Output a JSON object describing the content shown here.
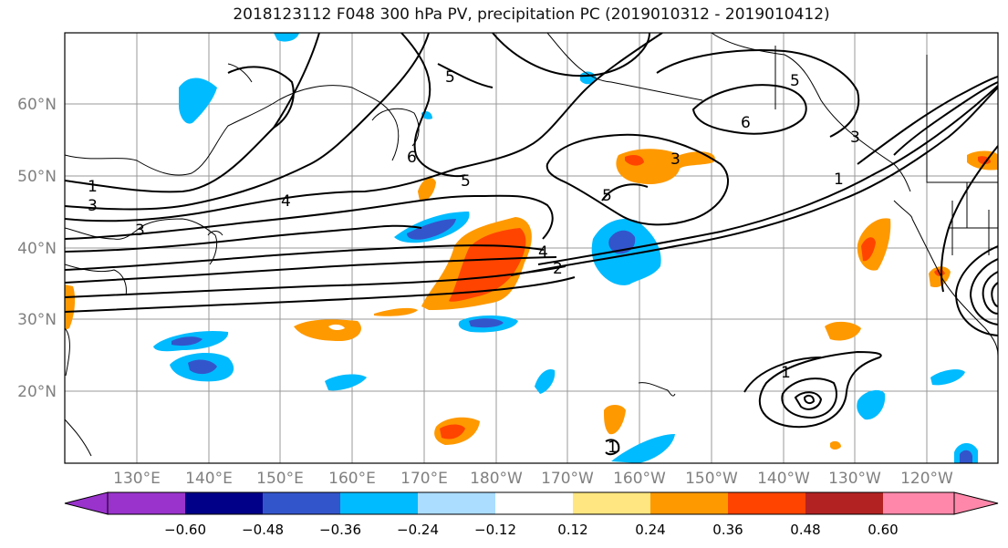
{
  "title": "2018123112 F048 300 hPa PV, precipitation PC (2019010312 - 2019010412)",
  "lat_labels": [
    "60°N",
    "50°N",
    "40°N",
    "30°N",
    "20°N"
  ],
  "lon_labels": [
    "130°E",
    "140°E",
    "150°E",
    "160°E",
    "170°E",
    "180°W",
    "170°W",
    "160°W",
    "150°W",
    "140°W",
    "130°W",
    "120°W"
  ],
  "contour_labels": [
    "1",
    "3",
    "4",
    "5",
    "6",
    "5",
    "6",
    "5",
    "5",
    "3",
    "3",
    "4",
    "2",
    "1",
    "1",
    "1",
    "3"
  ],
  "colorbar": {
    "ticks": [
      "−0.60",
      "−0.48",
      "−0.36",
      "−0.24",
      "−0.12",
      "0.12",
      "0.24",
      "0.36",
      "0.48",
      "0.60"
    ],
    "colors": [
      "#9933cc",
      "#000088",
      "#3355cc",
      "#00bbff",
      "#aaddff",
      "#ffffff",
      "#ffe680",
      "#ff9900",
      "#ff4400",
      "#b22222",
      "#ff88aa"
    ]
  },
  "colors": {
    "land_lines": "#000000",
    "grid": "#999999",
    "axis_text": "#808080"
  }
}
